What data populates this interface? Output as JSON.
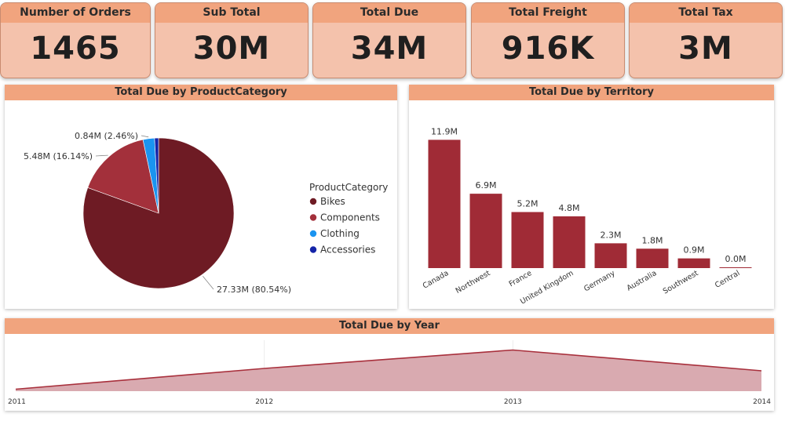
{
  "kpis": [
    {
      "label": "Number of Orders",
      "value": "1465"
    },
    {
      "label": "Sub Total",
      "value": "30M"
    },
    {
      "label": "Total Due",
      "value": "34M"
    },
    {
      "label": "Total Freight",
      "value": "916K"
    },
    {
      "label": "Total Tax",
      "value": "3M"
    }
  ],
  "colors": {
    "header": "#f1a47e",
    "card": "#f4c2ac",
    "bar": "#a02b36",
    "bikes": "#6e1b24",
    "components": "#a3303b",
    "clothing": "#1a94f0",
    "accessories": "#1424a8",
    "area_fill": "#d9aab0",
    "area_line": "#a8303c"
  },
  "chart_data": [
    {
      "type": "pie",
      "title": "Total Due by ProductCategory",
      "legend_title": "ProductCategory",
      "legend_position": "right",
      "slices": [
        {
          "name": "Bikes",
          "value": 27.33,
          "percent": 80.54,
          "label": "27.33M (80.54%)"
        },
        {
          "name": "Components",
          "value": 5.48,
          "percent": 16.14,
          "label": "5.48M (16.14%)"
        },
        {
          "name": "Clothing",
          "value": 0.84,
          "percent": 2.46,
          "label": "0.84M (2.46%)"
        },
        {
          "name": "Accessories",
          "value": 0.29,
          "percent": 0.86,
          "label": ""
        }
      ]
    },
    {
      "type": "bar",
      "title": "Total Due by Territory",
      "categories": [
        "Canada",
        "Northwest",
        "France",
        "United Kingdom",
        "Germany",
        "Australia",
        "Southwest",
        "Central"
      ],
      "values": [
        11.9,
        6.9,
        5.2,
        4.8,
        2.3,
        1.8,
        0.9,
        0.0
      ],
      "data_labels": [
        "11.9M",
        "6.9M",
        "5.2M",
        "4.8M",
        "2.3M",
        "1.8M",
        "0.9M",
        "0.0M"
      ],
      "ylim": [
        0,
        12
      ]
    },
    {
      "type": "area",
      "title": "Total Due by Year",
      "categories": [
        "2011",
        "2012",
        "2013",
        "2014"
      ],
      "values": [
        0.5,
        5.8,
        10.5,
        5.2
      ],
      "ylim": [
        0,
        12
      ]
    }
  ]
}
